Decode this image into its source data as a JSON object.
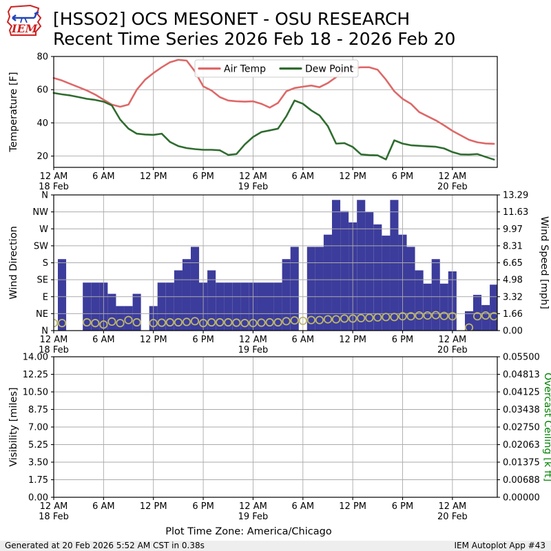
{
  "header": {
    "title_line1": "[HSSO2] OCS MESONET - OSU RESEARCH",
    "title_line2": "Recent Time Series 2026 Feb 18 - 2026 Feb 20",
    "logo_text": "IEM"
  },
  "footer": {
    "timezone_label": "Plot Time Zone: America/Chicago",
    "generated": "Generated at 20 Feb 2026 5:52 AM CST in 0.38s",
    "app": "IEM Autoplot App #43"
  },
  "colors": {
    "air_temp": "#de6868",
    "dew_point": "#2f6c2f",
    "wind_bar": "#3c3c9c",
    "wind_marker": "#bdb76b",
    "ceiling_label": "#008000",
    "grid": "#aaaaaa",
    "axis": "#000000",
    "footer_bg": "#eeeeee",
    "legend_border": "#cccccc"
  },
  "time_axis": {
    "index_unit": "hours since 18 Feb 12 AM",
    "span_hours": 53.4,
    "tick_hours": [
      0,
      6,
      12,
      18,
      24,
      30,
      36,
      42,
      48
    ],
    "tick_labels": [
      "12 AM",
      "6 AM",
      "12 PM",
      "6 PM",
      "12 AM",
      "6 AM",
      "12 PM",
      "6 PM",
      "12 AM"
    ],
    "date_ticks": [
      {
        "hour": 0,
        "label": "18 Feb"
      },
      {
        "hour": 24,
        "label": "19 Feb"
      },
      {
        "hour": 48,
        "label": "20 Feb"
      }
    ]
  },
  "chart_data": [
    {
      "type": "line",
      "panel": "temperature",
      "ylabel": "Temperature [F]",
      "ylim": [
        13.2,
        80
      ],
      "yticks": [
        20,
        40,
        60,
        80
      ],
      "grid": true,
      "legend_position": "upper center",
      "series": [
        {
          "name": "Air Temp",
          "color_key": "air_temp",
          "values": [
            67,
            65.5,
            63.5,
            61.5,
            59.5,
            57,
            54,
            51,
            49.7,
            51,
            60,
            66,
            70,
            73.5,
            76.5,
            78,
            77.5,
            71,
            62,
            59.5,
            55.5,
            53.5,
            53,
            52.8,
            53,
            51.5,
            49.2,
            52,
            59,
            61,
            61.8,
            62.5,
            61.5,
            64,
            67.5,
            71.5,
            73,
            73.5,
            73.5,
            72,
            66,
            59,
            54.5,
            51.5,
            46.5,
            44,
            41.5,
            38.5,
            35.2,
            32.5,
            29.8,
            28.3,
            27.6,
            27.4
          ]
        },
        {
          "name": "Dew Point",
          "color_key": "dew_point",
          "values": [
            58,
            57.2,
            56.5,
            55.5,
            54.5,
            53.8,
            52.8,
            50.5,
            42,
            36.5,
            33.5,
            33,
            32.8,
            33.5,
            28.5,
            26,
            24.8,
            24.2,
            23.8,
            23.8,
            23.5,
            20.7,
            21.2,
            27,
            31.5,
            34.5,
            35.5,
            36.5,
            44,
            53.5,
            51.5,
            47.5,
            44.5,
            38,
            27.5,
            27.8,
            25.5,
            21,
            20.6,
            20.4,
            18,
            29.5,
            27.5,
            26.5,
            26.2,
            25.9,
            25.6,
            24.6,
            22.4,
            21,
            20.9,
            21.2,
            19.5,
            17.9
          ]
        }
      ]
    },
    {
      "type": "bar+scatter",
      "panel": "wind",
      "ylabel_left": "Wind Direction",
      "ylabel_right": "Wind Speed [mph]",
      "dir_ticks_top_to_bottom": [
        "N",
        "NW",
        "W",
        "SW",
        "S",
        "SE",
        "E",
        "NE",
        "N"
      ],
      "dir_range_deg": [
        0,
        360
      ],
      "speed_ticks_top_to_bottom": [
        "13.29",
        "11.63",
        "9.97",
        "8.31",
        "6.65",
        "4.98",
        "3.32",
        "1.66",
        "0.00"
      ],
      "speed_max": 13.29,
      "speed_mph": [
        null,
        7.0,
        null,
        null,
        4.7,
        4.7,
        4.7,
        3.6,
        2.4,
        2.4,
        3.6,
        null,
        2.4,
        4.7,
        4.7,
        5.9,
        7.0,
        8.2,
        4.7,
        5.9,
        4.7,
        4.7,
        4.7,
        4.7,
        4.7,
        4.7,
        4.7,
        4.7,
        7.0,
        8.2,
        null,
        8.2,
        8.2,
        9.4,
        12.8,
        11.7,
        10.6,
        12.8,
        11.6,
        10.4,
        9.3,
        12.8,
        9.4,
        8.2,
        5.9,
        4.6,
        7.0,
        4.6,
        5.8,
        null,
        1.9,
        3.5,
        2.5,
        4.5
      ],
      "dir_deg": [
        20,
        20,
        null,
        null,
        22,
        20,
        16,
        24,
        20,
        28,
        22,
        null,
        20,
        21,
        22,
        22,
        23,
        25,
        20,
        22,
        22,
        22,
        21,
        20,
        20,
        21,
        22,
        22,
        25,
        27,
        26,
        28,
        28,
        30,
        30,
        32,
        32,
        33,
        34,
        35,
        36,
        36,
        38,
        38,
        40,
        40,
        41,
        39,
        38,
        null,
        8,
        38,
        40,
        38
      ]
    },
    {
      "type": "empty",
      "panel": "visibility",
      "ylabel_left": "Visibility [miles]",
      "ylabel_right": "Overcast Ceiling [k ft]",
      "yticks_left_top_to_bottom": [
        "14.00",
        "12.25",
        "10.50",
        "8.75",
        "7.00",
        "5.25",
        "3.50",
        "1.75",
        "0.00"
      ],
      "yticks_right_top_to_bottom": [
        "0.05500",
        "0.04813",
        "0.04125",
        "0.03438",
        "0.02750",
        "0.02063",
        "0.01375",
        "0.00688",
        "0.00000"
      ],
      "grid": true,
      "series": []
    }
  ]
}
